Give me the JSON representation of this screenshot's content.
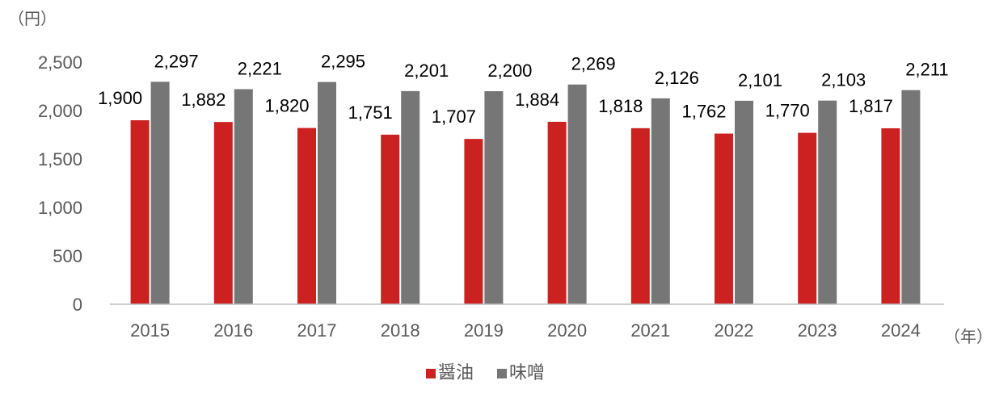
{
  "chart_data": {
    "type": "bar",
    "categories": [
      "2015",
      "2016",
      "2017",
      "2018",
      "2019",
      "2020",
      "2021",
      "2022",
      "2023",
      "2024"
    ],
    "series": [
      {
        "name": "醤油",
        "color": "#cc2121",
        "values": [
          1900,
          1882,
          1820,
          1751,
          1707,
          1884,
          1818,
          1762,
          1770,
          1817
        ]
      },
      {
        "name": "味噌",
        "color": "#767676",
        "values": [
          2297,
          2221,
          2295,
          2201,
          2200,
          2269,
          2126,
          2101,
          2103,
          2211
        ]
      }
    ],
    "y_unit_label": "（円）",
    "x_unit_label": "（年）",
    "yticks": [
      0,
      500,
      1000,
      1500,
      2000,
      2500
    ],
    "ylim": [
      0,
      2500
    ],
    "grid": false,
    "legend_position": "bottom",
    "data_labels": true
  }
}
